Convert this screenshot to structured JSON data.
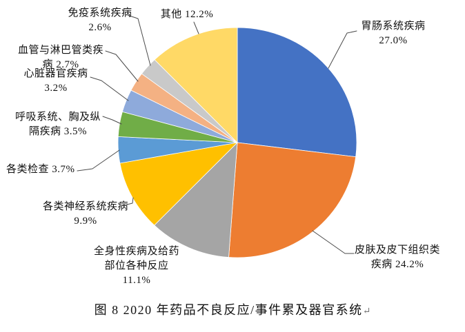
{
  "figure": {
    "caption": "图 8  2020 年药品不良反应/事件累及器官系统",
    "return_mark": "↵"
  },
  "chart_data": {
    "type": "pie",
    "title": "图 8  2020 年药品不良反应/事件累及器官系统",
    "start_angle_deg": 0,
    "direction": "clockwise",
    "value_unit": "%",
    "legend": "none (callout labels with leader lines)",
    "slices": [
      {
        "label": "胃肠系统疾病",
        "value": 27.0,
        "color": "#4472C4"
      },
      {
        "label": "皮肤及皮下组织类疾病",
        "value": 24.2,
        "color": "#ED7D31"
      },
      {
        "label": "全身性疾病及给药部位各种反应",
        "value": 11.1,
        "color": "#A5A5A5"
      },
      {
        "label": "各类神经系统疾病",
        "value": 9.9,
        "color": "#FFC000"
      },
      {
        "label": "各类检查",
        "value": 3.7,
        "color": "#5B9BD5"
      },
      {
        "label": "呼吸系统、胸及纵隔疾病",
        "value": 3.5,
        "color": "#70AD47"
      },
      {
        "label": "心脏器官疾病",
        "value": 3.2,
        "color": "#8EAADB"
      },
      {
        "label": "血管与淋巴管类疾病",
        "value": 2.7,
        "color": "#F4B183"
      },
      {
        "label": "免疫系统疾病",
        "value": 2.6,
        "color": "#C9C9C9"
      },
      {
        "label": "其他",
        "value": 12.2,
        "color": "#FFD966"
      }
    ]
  },
  "callouts": {
    "gastro": {
      "line1": "胃肠系统疾病",
      "line2": "27.0%"
    },
    "skin": {
      "line1": "皮肤及皮下组织类",
      "line2": "疾病 24.2%"
    },
    "systemic": {
      "line1": "全身性疾病及给药",
      "line2": "部位各种反应",
      "line3": "11.1%"
    },
    "nervous": {
      "line1": "各类神经系统疾病",
      "line2": "9.9%"
    },
    "exams": {
      "line1": "各类检查 3.7%"
    },
    "respiratory": {
      "line1": "呼吸系统、胸及纵",
      "line2": "隔疾病 3.5%"
    },
    "cardiac": {
      "line1": "心脏器官疾病",
      "line2": "3.2%"
    },
    "vascular": {
      "line1": "血管与淋巴管类疾",
      "line2": "病 2.7%"
    },
    "immune": {
      "line1": "免疫系统疾病",
      "line2": "2.6%"
    },
    "other": {
      "line1": "其他 12.2%"
    }
  }
}
